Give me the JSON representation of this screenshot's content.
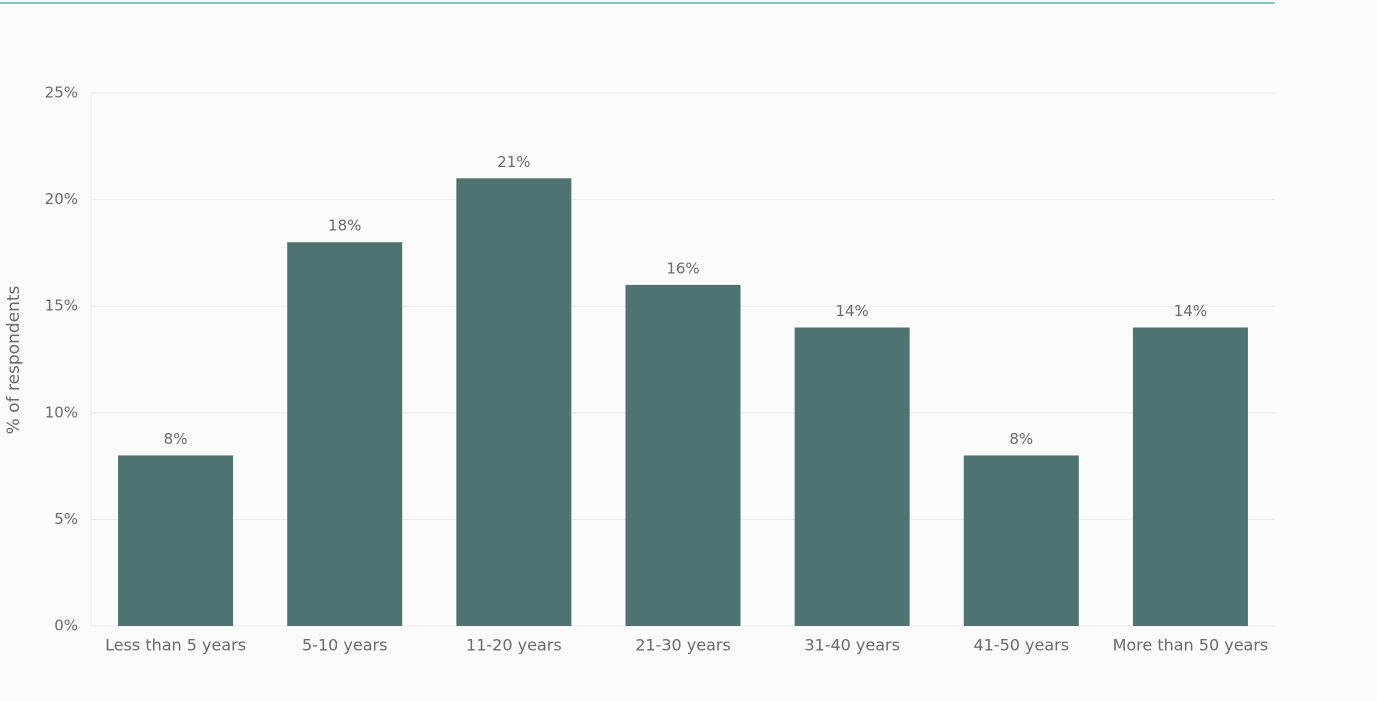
{
  "chart_data": {
    "type": "bar",
    "y_label": "% of respondents",
    "categories": [
      "Less than 5 years",
      "5-10 years",
      "11-20 years",
      "21-30 years",
      "31-40 years",
      "41-50 years",
      "More than 50 years"
    ],
    "values": [
      8,
      18,
      21,
      16,
      14,
      8,
      14
    ],
    "value_labels": [
      "8%",
      "18%",
      "21%",
      "16%",
      "14%",
      "8%",
      "14%"
    ],
    "color": "#4e7370",
    "ylim": [
      0,
      25
    ],
    "yticks": [
      {
        "value": 0,
        "label": "0%"
      },
      {
        "value": 5,
        "label": "5%"
      },
      {
        "value": 10,
        "label": "10%"
      },
      {
        "value": 15,
        "label": "15%"
      },
      {
        "value": 20,
        "label": "20%"
      },
      {
        "value": 25,
        "label": "25%"
      }
    ],
    "grid": true
  }
}
